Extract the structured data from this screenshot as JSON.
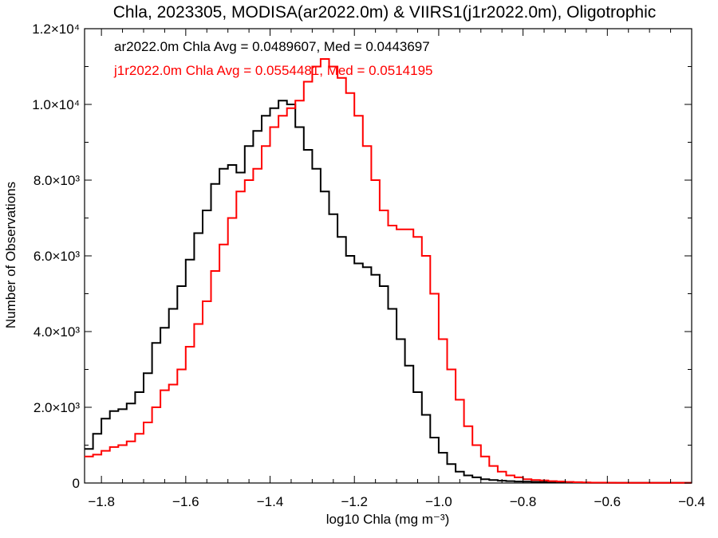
{
  "chart_data": {
    "type": "line",
    "step": true,
    "title": "Chla, 2023305, MODISA(ar2022.0m) & VIIRS1(j1r2022.0m), Oligotrophic",
    "xlabel": "log10 Chla (mg m⁻³)",
    "ylabel": "Number of Observations",
    "xlim": [
      -1.84,
      -0.4
    ],
    "ylim": [
      0,
      12000
    ],
    "xticks": [
      {
        "value": -1.8,
        "label": "−1.8"
      },
      {
        "value": -1.6,
        "label": "−1.6"
      },
      {
        "value": -1.4,
        "label": "−1.4"
      },
      {
        "value": -1.2,
        "label": "−1.2"
      },
      {
        "value": -1.0,
        "label": "−1.0"
      },
      {
        "value": -0.8,
        "label": "−0.8"
      },
      {
        "value": -0.6,
        "label": "−0.6"
      },
      {
        "value": -0.4,
        "label": "−0.4"
      }
    ],
    "yticks": [
      {
        "value": 0,
        "label": "0"
      },
      {
        "value": 2000,
        "label": "2.0×10³"
      },
      {
        "value": 4000,
        "label": "4.0×10³"
      },
      {
        "value": 6000,
        "label": "6.0×10³"
      },
      {
        "value": 8000,
        "label": "8.0×10³"
      },
      {
        "value": 10000,
        "label": "1.0×10⁴"
      },
      {
        "value": 12000,
        "label": "1.2×10⁴"
      }
    ],
    "grid": false,
    "legend": "top-left",
    "annotations": [
      {
        "text": "ar2022.0m Chla Avg = 0.0489607, Med = 0.0443697",
        "color": "#000000"
      },
      {
        "text": "j1r2022.0m Chla Avg = 0.0554481, Med = 0.0514195",
        "color": "#ff0000"
      }
    ],
    "series": [
      {
        "color": "#000000",
        "x": [
          -1.84,
          -1.82,
          -1.8,
          -1.78,
          -1.76,
          -1.74,
          -1.72,
          -1.7,
          -1.68,
          -1.66,
          -1.64,
          -1.62,
          -1.6,
          -1.58,
          -1.56,
          -1.54,
          -1.52,
          -1.5,
          -1.48,
          -1.46,
          -1.44,
          -1.42,
          -1.4,
          -1.38,
          -1.36,
          -1.34,
          -1.32,
          -1.3,
          -1.28,
          -1.26,
          -1.24,
          -1.22,
          -1.2,
          -1.18,
          -1.16,
          -1.14,
          -1.12,
          -1.1,
          -1.08,
          -1.06,
          -1.04,
          -1.02,
          -1.0,
          -0.98,
          -0.96,
          -0.94,
          -0.92,
          -0.9,
          -0.88,
          -0.86,
          -0.84,
          -0.82,
          -0.8,
          -0.78,
          -0.76,
          -0.74,
          -0.72,
          -0.7,
          -0.68,
          -0.66,
          -0.64,
          -0.62,
          -0.6,
          -0.58,
          -0.56,
          -0.54,
          -0.52,
          -0.5,
          -0.48,
          -0.46,
          -0.44,
          -0.42,
          -0.4
        ],
        "y": [
          900,
          1300,
          1700,
          1900,
          1950,
          2100,
          2400,
          2900,
          3700,
          4100,
          4600,
          5200,
          5900,
          6600,
          7200,
          7900,
          8300,
          8400,
          8200,
          8900,
          9300,
          9700,
          9900,
          10100,
          10000,
          9400,
          8800,
          8300,
          7700,
          7100,
          6500,
          6000,
          5800,
          5700,
          5500,
          5200,
          4600,
          3800,
          3100,
          2400,
          1800,
          1200,
          800,
          500,
          300,
          200,
          150,
          100,
          80,
          60,
          50,
          40,
          35,
          30,
          25,
          20,
          15,
          12,
          10,
          8,
          5,
          5,
          5,
          5,
          5,
          5,
          5,
          5,
          5,
          5,
          5,
          5,
          5
        ]
      },
      {
        "color": "#ff0000",
        "x": [
          -1.84,
          -1.82,
          -1.8,
          -1.78,
          -1.76,
          -1.74,
          -1.72,
          -1.7,
          -1.68,
          -1.66,
          -1.64,
          -1.62,
          -1.6,
          -1.58,
          -1.56,
          -1.54,
          -1.52,
          -1.5,
          -1.48,
          -1.46,
          -1.44,
          -1.42,
          -1.4,
          -1.38,
          -1.36,
          -1.34,
          -1.32,
          -1.3,
          -1.28,
          -1.26,
          -1.24,
          -1.22,
          -1.2,
          -1.18,
          -1.16,
          -1.14,
          -1.12,
          -1.1,
          -1.08,
          -1.06,
          -1.04,
          -1.02,
          -1.0,
          -0.98,
          -0.96,
          -0.94,
          -0.92,
          -0.9,
          -0.88,
          -0.86,
          -0.84,
          -0.82,
          -0.8,
          -0.78,
          -0.76,
          -0.74,
          -0.72,
          -0.7,
          -0.68,
          -0.66,
          -0.64,
          -0.62,
          -0.6,
          -0.58,
          -0.56,
          -0.54,
          -0.52,
          -0.5,
          -0.48,
          -0.46,
          -0.44,
          -0.42,
          -0.4
        ],
        "y": [
          700,
          750,
          850,
          950,
          1000,
          1100,
          1300,
          1600,
          2000,
          2450,
          2600,
          3000,
          3600,
          4200,
          4800,
          5600,
          6300,
          7000,
          7700,
          8000,
          8300,
          8900,
          9400,
          9700,
          9900,
          10100,
          10600,
          11000,
          11200,
          11000,
          10700,
          10300,
          9700,
          8900,
          8000,
          7200,
          6800,
          6700,
          6700,
          6500,
          6000,
          5000,
          3800,
          3000,
          2200,
          1500,
          1000,
          700,
          450,
          300,
          200,
          150,
          100,
          80,
          70,
          50,
          40,
          30,
          20,
          15,
          10,
          10,
          8,
          5,
          5,
          5,
          5,
          5,
          5,
          5,
          5,
          5,
          5
        ]
      }
    ]
  }
}
